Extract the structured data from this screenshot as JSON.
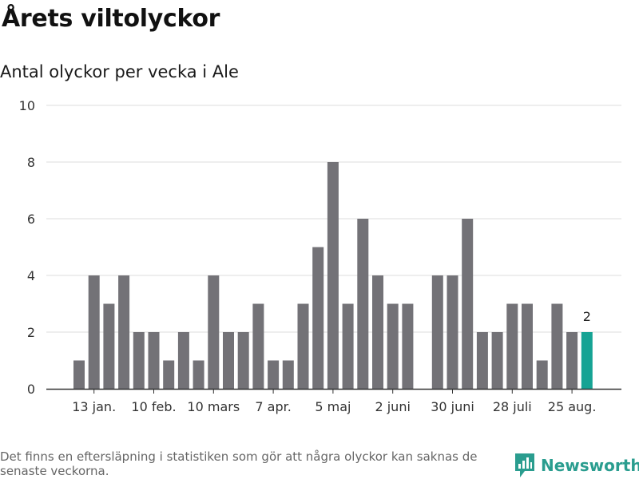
{
  "header": {
    "title": "Årets viltolyckor",
    "subtitle": "Antal olyckor per vecka i Ale"
  },
  "footer": {
    "note": "Det finns en eftersläpning i statistiken som gör att några olyckor kan saknas de senaste veckorna.",
    "brand": "Newsworthy",
    "brand_icon": "bar-chart-logo-icon"
  },
  "colors": {
    "bar": "#737277",
    "highlight": "#16a394",
    "grid": "#dddddd",
    "axis": "#333333",
    "brand": "#2a9d8f"
  },
  "chart_data": {
    "type": "bar",
    "title": "Årets viltolyckor",
    "subtitle": "Antal olyckor per vecka i Ale",
    "xlabel": "",
    "ylabel": "",
    "ylim": [
      0,
      10
    ],
    "yticks": [
      0,
      2,
      4,
      6,
      8,
      10
    ],
    "grid": true,
    "x_tick_labels": [
      {
        "label": "13 jan.",
        "at_week": 2
      },
      {
        "label": "10 feb.",
        "at_week": 6
      },
      {
        "label": "10 mars",
        "at_week": 10
      },
      {
        "label": "7 apr.",
        "at_week": 14
      },
      {
        "label": "5 maj",
        "at_week": 18
      },
      {
        "label": "2 juni",
        "at_week": 22
      },
      {
        "label": "30 juni",
        "at_week": 26
      },
      {
        "label": "28 juli",
        "at_week": 30
      },
      {
        "label": "25 aug.",
        "at_week": 34
      }
    ],
    "weeks": [
      1,
      2,
      3,
      4,
      5,
      6,
      7,
      8,
      9,
      10,
      11,
      12,
      13,
      14,
      15,
      16,
      17,
      18,
      19,
      20,
      21,
      22,
      23,
      24,
      25,
      26,
      27,
      28,
      29,
      30,
      31,
      32,
      33,
      34,
      35
    ],
    "values": [
      1,
      4,
      3,
      4,
      2,
      2,
      1,
      2,
      1,
      4,
      2,
      2,
      3,
      1,
      1,
      3,
      5,
      8,
      3,
      6,
      4,
      3,
      3,
      0,
      4,
      4,
      6,
      2,
      2,
      3,
      3,
      1,
      3,
      2,
      2
    ],
    "highlight_index": 34,
    "highlight_label": "2"
  }
}
